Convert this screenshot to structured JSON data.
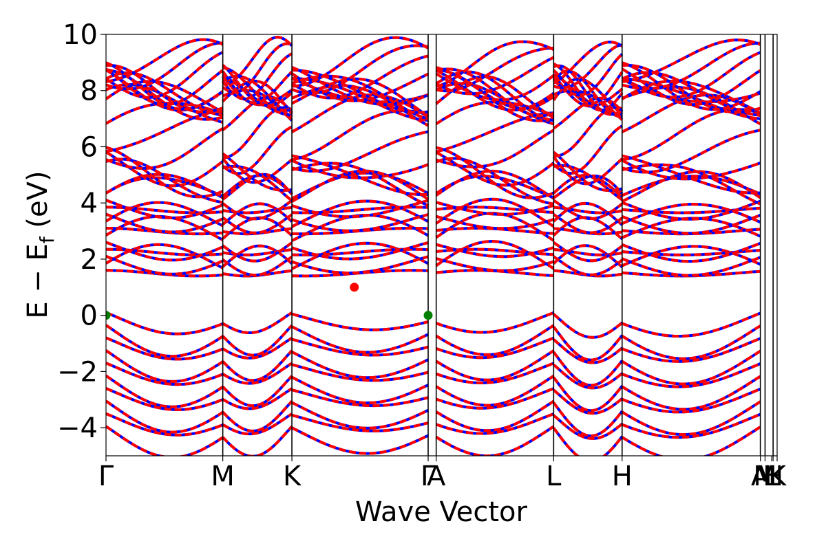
{
  "chart_data": {
    "type": "line",
    "title": "",
    "xlabel": "Wave Vector",
    "ylabel": "E − E",
    "ylabel_sub": "f",
    "ylabel_unit": " (eV)",
    "ylim": [
      -5,
      10
    ],
    "y_ticks": [
      {
        "value": 10,
        "label": "10"
      },
      {
        "value": 8,
        "label": "8"
      },
      {
        "value": 6,
        "label": "6"
      },
      {
        "value": 4,
        "label": "4"
      },
      {
        "value": 2,
        "label": "2"
      },
      {
        "value": 0,
        "label": "0"
      },
      {
        "value": -2,
        "label": "−2"
      },
      {
        "value": -4,
        "label": "−4"
      }
    ],
    "xlim": [
      0,
      1
    ],
    "k_points": [
      {
        "label": "Γ",
        "x": 0.0
      },
      {
        "label": "M",
        "x": 0.174
      },
      {
        "label": "K",
        "x": 0.277
      },
      {
        "label": "Γ",
        "x": 0.48
      },
      {
        "label": "A",
        "x": 0.492
      },
      {
        "label": "L",
        "x": 0.667
      },
      {
        "label": "H",
        "x": 0.769
      },
      {
        "label": "A",
        "x": 0.975
      },
      {
        "label": "M",
        "x": 0.982
      },
      {
        "label": "L",
        "x": 0.992
      },
      {
        "label": "H",
        "x": 0.994
      },
      {
        "label": "K",
        "x": 1.0
      }
    ],
    "vertical_lines_x": [
      0.174,
      0.277,
      0.48,
      0.492,
      0.667,
      0.769,
      0.975,
      0.982,
      0.994
    ],
    "series": [
      {
        "color": "#0000ff",
        "style": "solid"
      },
      {
        "color": "#ff0000",
        "style": "dashed"
      }
    ],
    "markers": [
      {
        "x": 0.0,
        "y": 0.0,
        "color": "#008000"
      },
      {
        "x": 0.48,
        "y": 0.0,
        "color": "#008000"
      },
      {
        "x": 0.37,
        "y": 1.0,
        "color": "#ff0000"
      }
    ],
    "grid": false,
    "legend": "none"
  }
}
